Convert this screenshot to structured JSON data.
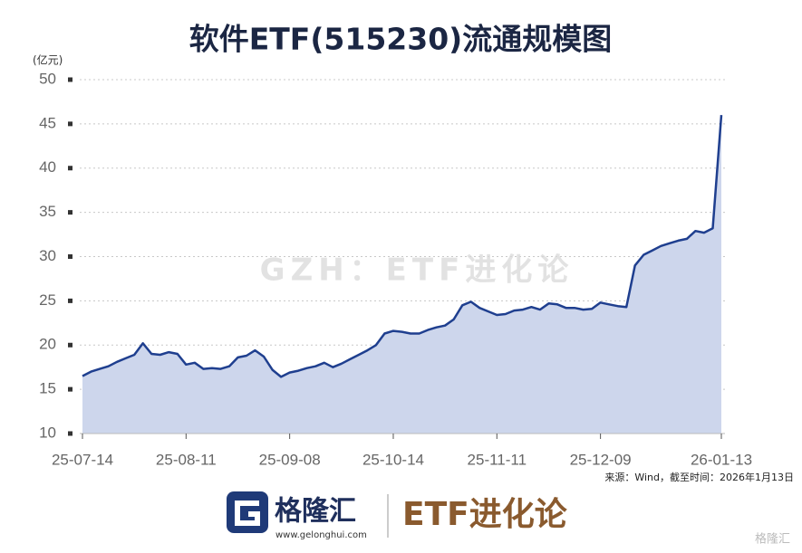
{
  "chart_data": {
    "type": "area",
    "title": "软件ETF(515230)流通规模图",
    "y_unit": "(亿元)",
    "categories": [
      "25-07-14",
      null,
      null,
      null,
      null,
      null,
      null,
      null,
      null,
      null,
      null,
      null,
      "25-08-11",
      null,
      null,
      null,
      null,
      null,
      null,
      null,
      null,
      null,
      null,
      null,
      "25-09-08",
      null,
      null,
      null,
      null,
      null,
      null,
      null,
      null,
      null,
      null,
      null,
      "25-10-14",
      null,
      null,
      null,
      null,
      null,
      null,
      null,
      null,
      null,
      null,
      null,
      "25-11-11",
      null,
      null,
      null,
      null,
      null,
      null,
      null,
      null,
      null,
      null,
      null,
      "25-12-09",
      null,
      null,
      null,
      null,
      null,
      null,
      null,
      null,
      null,
      null,
      null,
      null,
      null,
      "26-01-13"
    ],
    "values": [
      16.5,
      17.0,
      17.3,
      17.6,
      18.1,
      18.5,
      18.9,
      20.2,
      19.0,
      18.9,
      19.2,
      19.0,
      17.8,
      18.0,
      17.3,
      17.4,
      17.3,
      17.6,
      18.6,
      18.8,
      19.4,
      18.7,
      17.2,
      16.4,
      16.9,
      17.1,
      17.4,
      17.6,
      18.0,
      17.5,
      17.9,
      18.4,
      18.9,
      19.4,
      20.0,
      21.3,
      21.6,
      21.5,
      21.3,
      21.3,
      21.7,
      22.0,
      22.2,
      22.9,
      24.5,
      24.9,
      24.2,
      23.8,
      23.4,
      23.5,
      23.9,
      24.0,
      24.3,
      24.0,
      24.7,
      24.6,
      24.2,
      24.2,
      24.0,
      24.1,
      24.8,
      24.6,
      24.4,
      24.3,
      29.0,
      30.2,
      30.7,
      31.2,
      31.5,
      31.8,
      32.0,
      32.9,
      32.7,
      33.2,
      46.0
    ],
    "color": "#1f3f8f",
    "fill": "#cdd6ec",
    "ylim": [
      10,
      50
    ],
    "yticks": [
      10,
      15,
      20,
      25,
      30,
      35,
      40,
      45,
      50
    ],
    "grid": true,
    "source": "来源：Wind，截至时间：2026年1月13日",
    "watermark": "GZH：ETF进化论"
  },
  "footer": {
    "brand": "格隆汇",
    "url": "www.gelonghui.com",
    "column": "ETF进化论",
    "corner": "格隆汇"
  }
}
